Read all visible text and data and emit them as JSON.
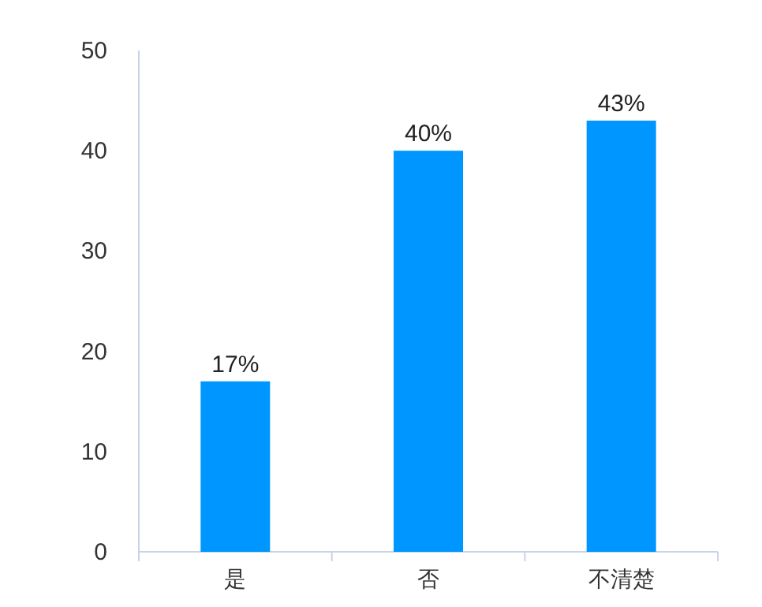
{
  "chart_data": {
    "type": "bar",
    "categories": [
      "是",
      "否",
      "不清楚"
    ],
    "values": [
      17,
      40,
      43
    ],
    "value_labels": [
      "17%",
      "40%",
      "43%"
    ],
    "color": "#0096ff",
    "ylim": [
      0,
      50
    ],
    "yticks": [
      0,
      10,
      20,
      30,
      40,
      50
    ],
    "grid": false
  }
}
